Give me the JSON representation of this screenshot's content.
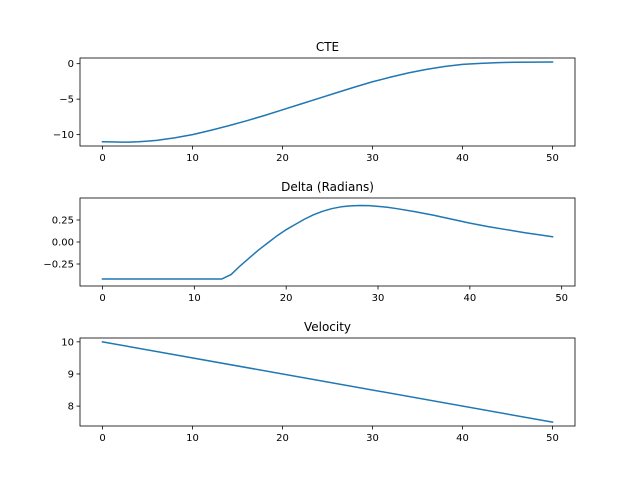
{
  "colors": {
    "series": "#1f77b4"
  },
  "chart_data": [
    {
      "type": "line",
      "title": "CTE",
      "xlabel": "",
      "ylabel": "",
      "xlim": [
        -2.5,
        52.5
      ],
      "ylim": [
        -11.6,
        0.8
      ],
      "xticks": [
        0,
        10,
        20,
        30,
        40,
        50
      ],
      "xtick_labels": [
        "0",
        "10",
        "20",
        "30",
        "40",
        "50"
      ],
      "yticks": [
        -10,
        -5,
        0
      ],
      "ytick_labels": [
        "−10",
        "−5",
        "0"
      ],
      "grid": false,
      "series": [
        {
          "x": [
            0,
            1,
            2,
            3,
            4,
            5,
            6,
            8,
            10,
            12,
            14,
            16,
            18,
            20,
            22,
            24,
            26,
            28,
            30,
            32,
            34,
            36,
            38,
            40,
            42,
            44,
            46,
            48,
            50
          ],
          "y": [
            -11.0,
            -11.02,
            -11.05,
            -11.05,
            -11.0,
            -10.92,
            -10.8,
            -10.45,
            -10.0,
            -9.4,
            -8.75,
            -8.05,
            -7.3,
            -6.5,
            -5.7,
            -4.9,
            -4.1,
            -3.3,
            -2.55,
            -1.9,
            -1.3,
            -0.8,
            -0.4,
            -0.1,
            0.05,
            0.15,
            0.2,
            0.22,
            0.23
          ]
        }
      ]
    },
    {
      "type": "line",
      "title": "Delta (Radians)",
      "xlabel": "",
      "ylabel": "",
      "xlim": [
        -2.45,
        51.45
      ],
      "ylim": [
        -0.5,
        0.5
      ],
      "xticks": [
        0,
        10,
        20,
        30,
        40,
        50
      ],
      "xtick_labels": [
        "0",
        "10",
        "20",
        "30",
        "40",
        "50"
      ],
      "yticks": [
        -0.25,
        0.0,
        0.25
      ],
      "ytick_labels": [
        "−0.25",
        "0.00",
        "0.25"
      ],
      "grid": false,
      "series": [
        {
          "x": [
            0,
            13,
            14,
            15,
            16,
            17,
            18,
            19,
            20,
            21,
            22,
            23,
            24,
            25,
            26,
            27,
            28,
            29,
            30,
            31,
            32,
            34,
            36,
            38,
            40,
            42,
            44,
            46,
            48,
            49
          ],
          "y": [
            -0.42,
            -0.42,
            -0.37,
            -0.27,
            -0.18,
            -0.09,
            -0.01,
            0.07,
            0.14,
            0.2,
            0.26,
            0.31,
            0.35,
            0.38,
            0.4,
            0.41,
            0.415,
            0.413,
            0.405,
            0.395,
            0.38,
            0.345,
            0.305,
            0.26,
            0.215,
            0.175,
            0.14,
            0.105,
            0.075,
            0.06
          ]
        }
      ]
    },
    {
      "type": "line",
      "title": "Velocity",
      "xlabel": "",
      "ylabel": "",
      "xlim": [
        -2.5,
        52.5
      ],
      "ylim": [
        7.38,
        10.12
      ],
      "xticks": [
        0,
        10,
        20,
        30,
        40,
        50
      ],
      "xtick_labels": [
        "0",
        "10",
        "20",
        "30",
        "40",
        "50"
      ],
      "yticks": [
        8,
        9,
        10
      ],
      "ytick_labels": [
        "8",
        "9",
        "10"
      ],
      "grid": false,
      "series": [
        {
          "x": [
            0,
            50
          ],
          "y": [
            10.0,
            7.5
          ]
        }
      ]
    }
  ]
}
